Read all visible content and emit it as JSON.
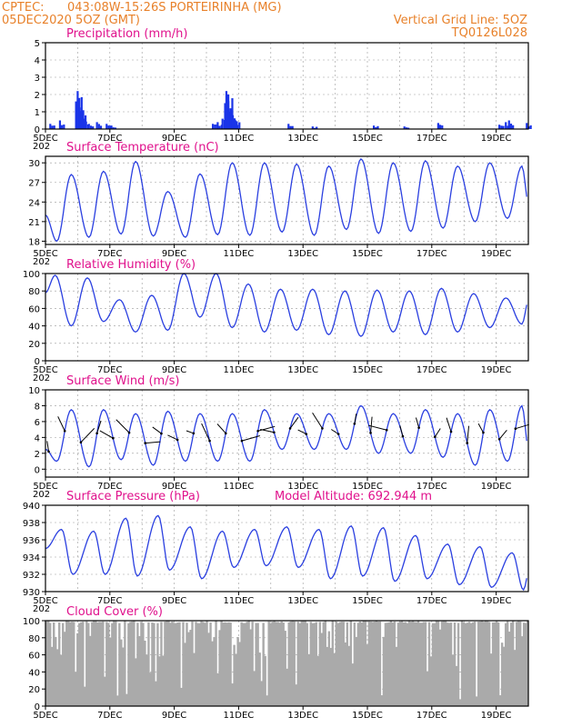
{
  "header": {
    "source": "CPTEC:",
    "location": "043:08W-15:26S  PORTEIRINHA (MG)",
    "run": "05DEC2020 5OZ (GMT)",
    "grid_note": "Vertical Grid Line: 5OZ",
    "code": "TQ0126L028"
  },
  "colors": {
    "line": "#2a3fe0",
    "bars": "#1a34e8",
    "cloud": "#aaaaaa",
    "header": "#e8812a",
    "title": "#e0118c"
  },
  "x_axis": {
    "labels": [
      "5DEC",
      "7DEC",
      "9DEC",
      "11DEC",
      "13DEC",
      "15DEC",
      "17DEC",
      "19DEC"
    ],
    "label_days": [
      0,
      2,
      4,
      6,
      8,
      10,
      12,
      14
    ],
    "range_days": [
      0,
      15
    ],
    "year_stub": "202"
  },
  "chart_data": [
    {
      "type": "bar",
      "title": "Precipitation (mm/h)",
      "ylim": [
        0,
        5
      ],
      "yticks": [
        "0",
        "1",
        "2",
        "3",
        "4",
        "5"
      ],
      "grid": true,
      "peaks": [
        {
          "day": 0.15,
          "value": 0.3
        },
        {
          "day": 0.45,
          "value": 0.5
        },
        {
          "day": 0.95,
          "value": 1.6
        },
        {
          "day": 1.0,
          "value": 2.2
        },
        {
          "day": 1.05,
          "value": 1.8
        },
        {
          "day": 1.12,
          "value": 1.0
        },
        {
          "day": 1.2,
          "value": 0.6
        },
        {
          "day": 1.35,
          "value": 0.3
        },
        {
          "day": 1.6,
          "value": 0.4
        },
        {
          "day": 1.9,
          "value": 0.3
        },
        {
          "day": 2.05,
          "value": 0.2
        },
        {
          "day": 5.2,
          "value": 0.3
        },
        {
          "day": 5.35,
          "value": 0.4
        },
        {
          "day": 5.5,
          "value": 0.6
        },
        {
          "day": 5.58,
          "value": 1.5
        },
        {
          "day": 5.62,
          "value": 2.2
        },
        {
          "day": 5.68,
          "value": 2.0
        },
        {
          "day": 5.75,
          "value": 1.2
        },
        {
          "day": 5.82,
          "value": 0.8
        },
        {
          "day": 5.9,
          "value": 0.5
        },
        {
          "day": 7.55,
          "value": 0.3
        },
        {
          "day": 8.3,
          "value": 0.15
        },
        {
          "day": 10.2,
          "value": 0.2
        },
        {
          "day": 11.15,
          "value": 0.15
        },
        {
          "day": 12.2,
          "value": 0.35
        },
        {
          "day": 14.1,
          "value": 0.25
        },
        {
          "day": 14.3,
          "value": 0.4
        },
        {
          "day": 14.4,
          "value": 0.5
        },
        {
          "day": 14.95,
          "value": 0.35
        }
      ]
    },
    {
      "type": "line",
      "title": "Surface Temperature (nC)",
      "ylim": [
        17.5,
        31
      ],
      "yticks": [
        "18",
        "21",
        "24",
        "27",
        "30"
      ],
      "daily_max": [
        28.2,
        28.7,
        30.2,
        25.6,
        28.3,
        30.0,
        30.0,
        29.8,
        29.5,
        30.6,
        30.0,
        30.3,
        29.5,
        30.0,
        29.5
      ],
      "daily_min": [
        18.0,
        18.6,
        19.1,
        18.8,
        18.6,
        19.0,
        18.9,
        19.4,
        18.9,
        19.8,
        19.2,
        19.5,
        20.0,
        21.0,
        21.5
      ],
      "start_value": 22.0,
      "end_value": 24.0
    },
    {
      "type": "line",
      "title": "Relative Humidity (%)",
      "ylim": [
        0,
        100
      ],
      "yticks": [
        "0",
        "20",
        "40",
        "60",
        "80",
        "100"
      ],
      "daily_max": [
        98,
        95,
        70,
        75,
        100,
        100,
        88,
        82,
        82,
        80,
        81,
        80,
        83,
        77,
        72
      ],
      "daily_min": [
        40,
        45,
        33,
        35,
        50,
        38,
        33,
        35,
        30,
        28,
        33,
        30,
        33,
        38,
        42
      ],
      "start_value": 78,
      "end_value": 68
    },
    {
      "type": "line",
      "title": "Surface Wind (m/s)",
      "ylim": [
        -1,
        10
      ],
      "yticks": [
        "0",
        "2",
        "4",
        "6",
        "8",
        "10"
      ],
      "daily_max": [
        7.5,
        7.5,
        7.0,
        7.3,
        7.0,
        7.0,
        7.5,
        7.0,
        7.0,
        8.0,
        7.0,
        7.5,
        7.0,
        7.5,
        8.0
      ],
      "daily_min": [
        1.0,
        0.3,
        1.2,
        0.5,
        1.0,
        1.0,
        1.0,
        2.5,
        2.5,
        2.5,
        2.0,
        2.0,
        1.5,
        0.5,
        1.0
      ],
      "start_value": 2.5,
      "end_value": 2.8
    },
    {
      "type": "line",
      "title": "Surface Pressure (hPa)",
      "subtitle": "Model Altitude: 692.944 m",
      "ylim": [
        930,
        940
      ],
      "yticks": [
        "930",
        "932",
        "934",
        "936",
        "938",
        "940"
      ],
      "daily_max": [
        937.2,
        937.0,
        938.5,
        938.8,
        937.5,
        937.0,
        937.2,
        937.5,
        937.2,
        937.6,
        937.4,
        936.5,
        935.5,
        935.2,
        934.5
      ],
      "daily_min": [
        932.0,
        932.0,
        931.8,
        932.5,
        931.5,
        932.8,
        933.0,
        932.8,
        931.5,
        931.8,
        931.2,
        931.5,
        930.8,
        930.5,
        930.2
      ],
      "start_value": 935.0,
      "end_value": 932.0
    },
    {
      "type": "area",
      "title": "Cloud Cover (%)",
      "ylim": [
        0,
        100
      ],
      "yticks": [
        "0",
        "20",
        "40",
        "60",
        "80",
        "100"
      ],
      "base_value": 97
    }
  ]
}
